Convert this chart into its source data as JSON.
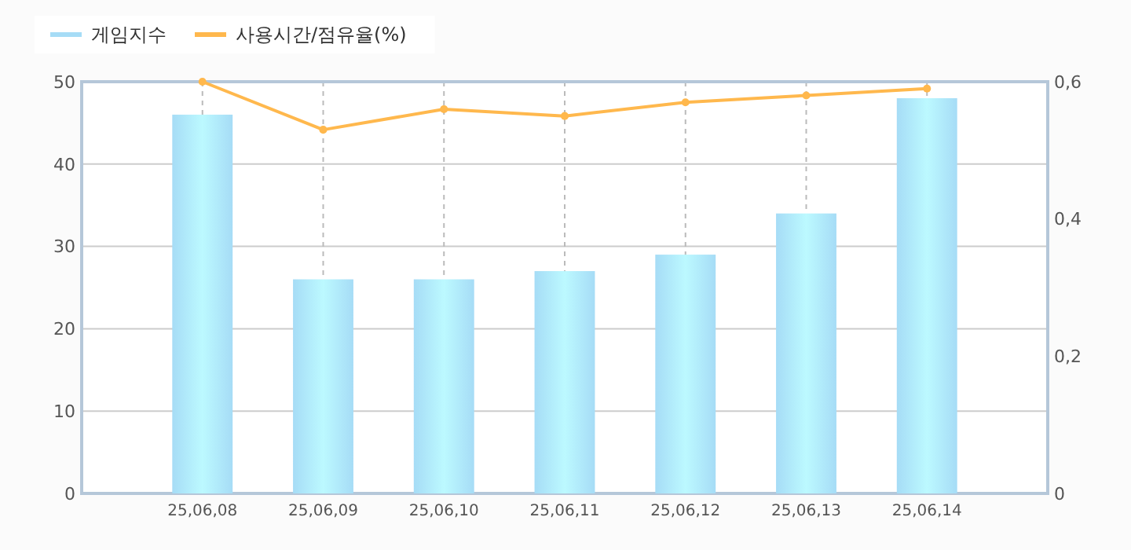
{
  "chart_data": {
    "type": "bar",
    "categories": [
      "25,06,08",
      "25,06,09",
      "25,06,10",
      "25,06,11",
      "25,06,12",
      "25,06,13",
      "25,06,14"
    ],
    "series": [
      {
        "name": "게임지수",
        "color": "#a6dcf6",
        "values": [
          46,
          26,
          26,
          27,
          29,
          34,
          48
        ]
      },
      {
        "name": "사용시간/점유율(%)",
        "type": "line",
        "axis": "y2",
        "color": "#ffb84d",
        "values": [
          0.6,
          0.53,
          0.56,
          0.55,
          0.57,
          0.58,
          0.59
        ]
      }
    ],
    "ylim": [
      0,
      50
    ],
    "yticks": [
      0,
      10,
      20,
      30,
      40,
      50
    ],
    "y2lim": [
      0,
      0.6
    ],
    "y2ticks": [
      0,
      {
        "value": 0.2,
        "label": "0,2"
      },
      {
        "value": 0.4,
        "label": "0,4"
      },
      {
        "value": 0.6,
        "label": "0,6"
      }
    ],
    "grid": true,
    "legend": "top left",
    "marker": "circle",
    "line_style": "solid"
  }
}
